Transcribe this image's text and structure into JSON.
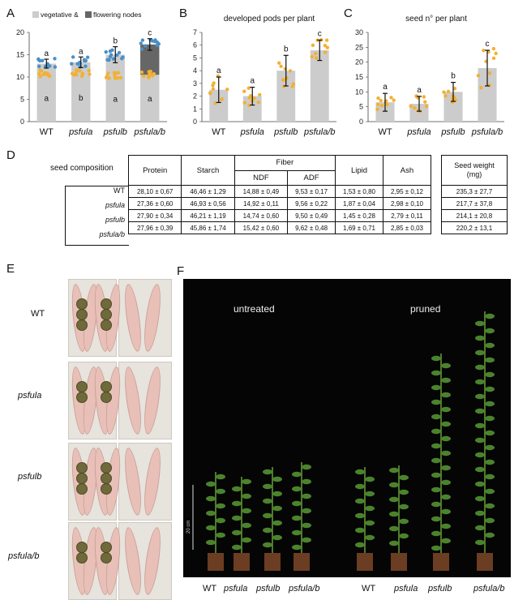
{
  "panels": {
    "A": "A",
    "B": "B",
    "C": "C",
    "D": "D",
    "E": "E",
    "F": "F"
  },
  "genotypes": [
    "WT",
    "psfula",
    "psfulb",
    "psfula/b"
  ],
  "chart_data": [
    {
      "type": "bar",
      "title": "",
      "legend": [
        {
          "name": "vegetative &",
          "color": "#cccccc"
        },
        {
          "name": "flowering nodes",
          "color": "#666666"
        }
      ],
      "categories": [
        "WT",
        "psfula",
        "psfulb",
        "psfula/b"
      ],
      "series": [
        {
          "name": "vegetative &",
          "values": [
            10.8,
            10.9,
            10.4,
            10.5
          ]
        },
        {
          "name": "flowering nodes",
          "values": [
            2.2,
            2.4,
            4.6,
            6.8
          ]
        }
      ],
      "errors": [
        1.0,
        1.2,
        1.8,
        1.3
      ],
      "letters_top": [
        "a",
        "a",
        "b",
        "c"
      ],
      "letters_bottom": [
        "a",
        "b",
        "a",
        "a"
      ],
      "ylim": [
        0,
        20
      ],
      "yticks": [
        0,
        5,
        10,
        15,
        20
      ],
      "legend_position": "top"
    },
    {
      "type": "bar",
      "title": "developed pods per plant",
      "categories": [
        "WT",
        "psfula",
        "psfulb",
        "psfula/b"
      ],
      "values": [
        2.5,
        2.0,
        4.0,
        5.6
      ],
      "errors": [
        1.0,
        0.7,
        1.2,
        0.8
      ],
      "letters": [
        "a",
        "a",
        "b",
        "c"
      ],
      "ylim": [
        0,
        7
      ],
      "yticks": [
        0,
        1,
        2,
        3,
        4,
        5,
        6,
        7
      ]
    },
    {
      "type": "bar",
      "title": "seed n° per plant",
      "categories": [
        "WT",
        "psfula",
        "psfulb",
        "psfula/b"
      ],
      "values": [
        6.5,
        6.0,
        10.0,
        18.0
      ],
      "errors": [
        3.0,
        2.5,
        3.2,
        6.0
      ],
      "letters": [
        "a",
        "a",
        "b",
        "c"
      ],
      "ylim": [
        0,
        30
      ],
      "yticks": [
        0,
        5,
        10,
        15,
        20,
        25,
        30
      ]
    }
  ],
  "table": {
    "label": "seed composition",
    "header_fiber": "Fiber",
    "headers": [
      "Protein",
      "Starch",
      "NDF",
      "ADF",
      "Lipid",
      "Ash"
    ],
    "rows": [
      {
        "name": "WT",
        "cells": [
          "28,10 ± 0,67",
          "46,46 ± 1,29",
          "14,88 ± 0,49",
          "9,53 ± 0,17",
          "1,53 ± 0,80",
          "2,95 ± 0,12"
        ],
        "seed_weight": "235,3 ± 27,7"
      },
      {
        "name": "psfula",
        "cells": [
          "27,36 ± 0,60",
          "46,93 ± 0,56",
          "14,92 ± 0,11",
          "9,56 ± 0,22",
          "1,87 ± 0,04",
          "2,98 ± 0,10"
        ],
        "seed_weight": "217,7 ± 37,8"
      },
      {
        "name": "psfulb",
        "cells": [
          "27,90 ± 0,34",
          "46,21 ± 1,19",
          "14,74 ± 0,60",
          "9,50 ± 0,49",
          "1,45 ± 0,28",
          "2,79 ± 0,11"
        ],
        "seed_weight": "214,1 ± 20,8"
      },
      {
        "name": "psfula/b",
        "cells": [
          "27,96 ± 0,39",
          "45,86 ± 1,74",
          "15,42 ± 0,60",
          "9,62 ± 0,48",
          "1,69 ± 0,71",
          "2,85 ± 0,03"
        ],
        "seed_weight": "220,2 ± 13,1"
      }
    ],
    "seed_weight_header": "Seed weight",
    "seed_weight_unit": "(mg)"
  },
  "photo_f": {
    "untreated": "untreated",
    "pruned": "pruned",
    "labels_left": [
      "WT",
      "psfula",
      "psfulb",
      "psfula/b"
    ],
    "labels_right": [
      "WT",
      "psfula",
      "psfulb",
      "psfula/b"
    ],
    "scale_label": "20 cm"
  }
}
